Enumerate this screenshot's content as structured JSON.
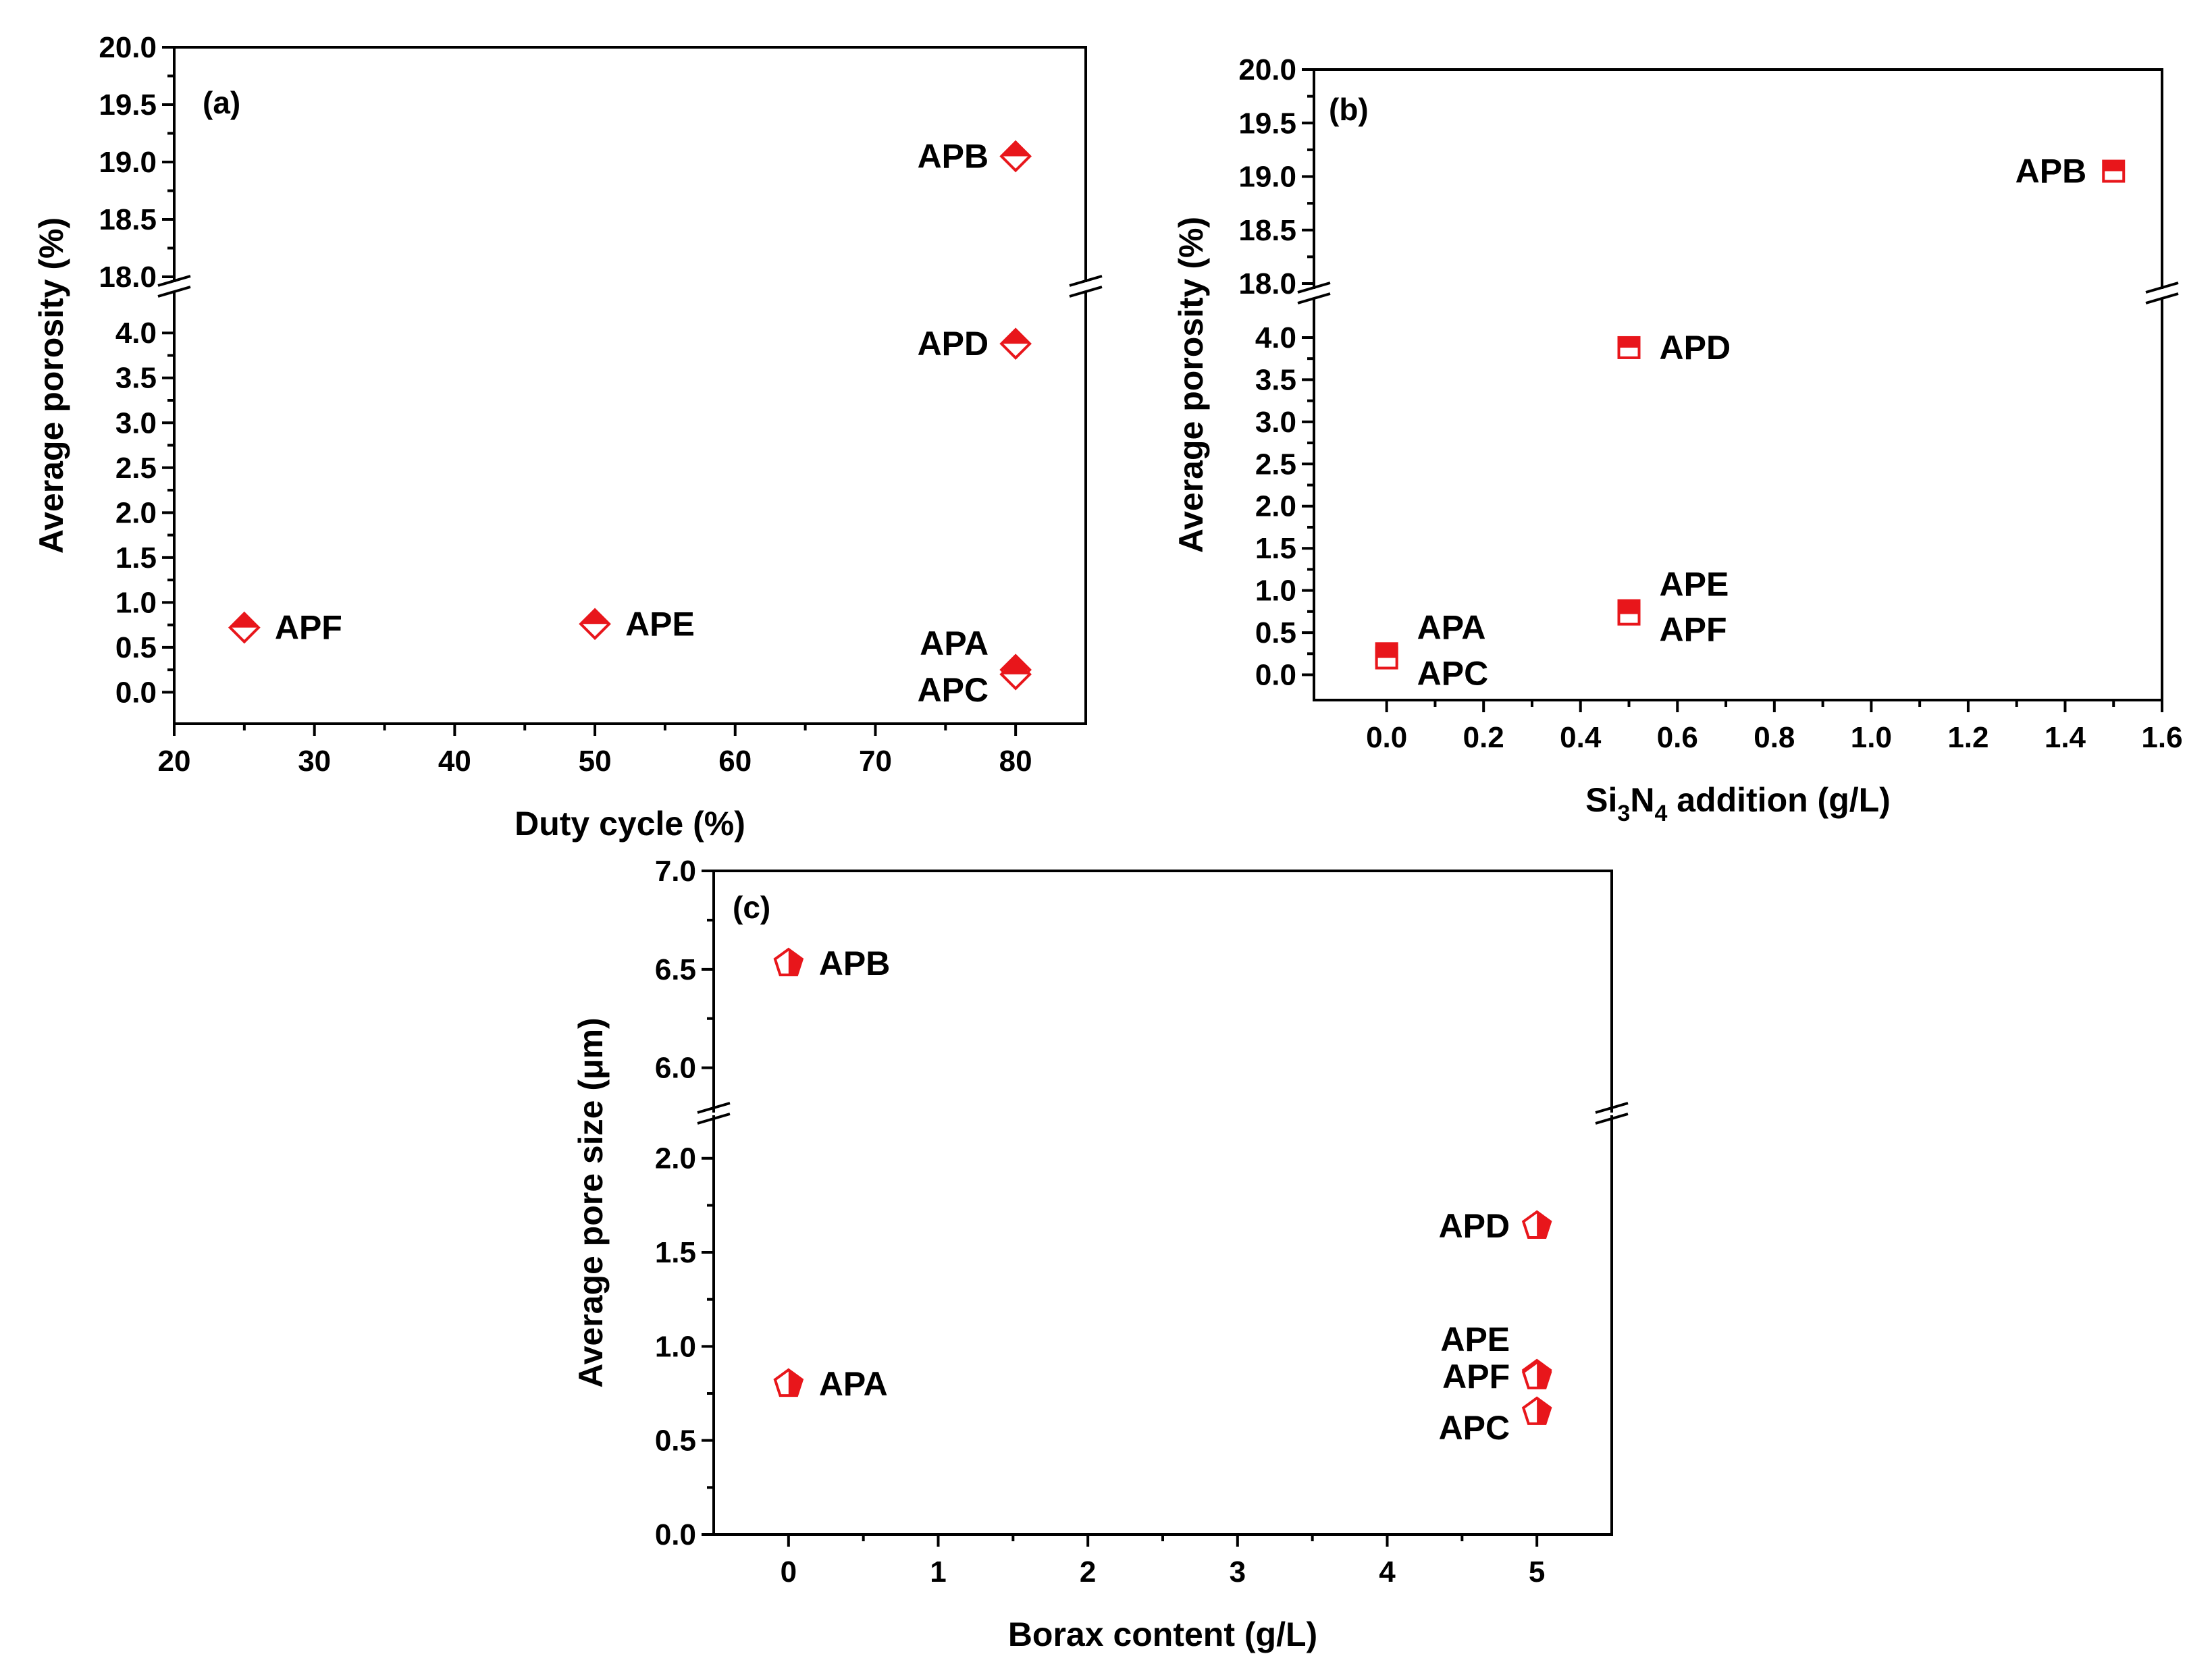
{
  "figure": {
    "panels": [
      "(a)",
      "(b)",
      "(c)"
    ]
  },
  "chart_data": [
    {
      "id": "a",
      "type": "scatter",
      "panel_label": "(a)",
      "xlabel": "Duty cycle (%)",
      "ylabel": "Average porosity (%)",
      "xlim": [
        20,
        85
      ],
      "xticks": [
        20,
        30,
        40,
        50,
        60,
        70,
        80
      ],
      "y_break": {
        "lower": [
          -0.35,
          4.4
        ],
        "upper": [
          18.0,
          20.0
        ]
      },
      "yticks_lower": [
        0.0,
        0.5,
        1.0,
        1.5,
        2.0,
        2.5,
        3.0,
        3.5,
        4.0
      ],
      "yticks_upper": [
        18.0,
        18.5,
        19.0,
        19.5,
        20.0
      ],
      "marker": "diamond-half",
      "color": "#e8161b",
      "points": [
        {
          "label": "APF",
          "x": 25,
          "y": 0.72,
          "label_pos": "right"
        },
        {
          "label": "APE",
          "x": 50,
          "y": 0.76,
          "label_pos": "right"
        },
        {
          "label": "APA",
          "x": 80,
          "y": 0.25,
          "label_pos": "left-up"
        },
        {
          "label": "APC",
          "x": 80,
          "y": 0.2,
          "label_pos": "left-down"
        },
        {
          "label": "APD",
          "x": 80,
          "y": 3.88,
          "label_pos": "left"
        },
        {
          "label": "APB",
          "x": 80,
          "y": 19.05,
          "label_pos": "left"
        }
      ]
    },
    {
      "id": "b",
      "type": "scatter",
      "panel_label": "(b)",
      "xlabel_parts": [
        "Si",
        "3",
        "N",
        "4",
        " addition (g/L)"
      ],
      "ylabel": "Average porosity (%)",
      "xlim": [
        -0.15,
        1.6
      ],
      "xticks": [
        0.0,
        0.2,
        0.4,
        0.6,
        0.8,
        1.0,
        1.2,
        1.4,
        1.6
      ],
      "y_break": {
        "lower": [
          -0.3,
          4.4
        ],
        "upper": [
          18.0,
          20.0
        ]
      },
      "yticks_lower": [
        0.0,
        0.5,
        1.0,
        1.5,
        2.0,
        2.5,
        3.0,
        3.5,
        4.0
      ],
      "yticks_upper": [
        18.0,
        18.5,
        19.0,
        19.5,
        20.0
      ],
      "marker": "square-half",
      "color": "#e8161b",
      "points": [
        {
          "label": "APA",
          "x": 0.0,
          "y": 0.25,
          "label_pos": "right-up"
        },
        {
          "label": "APC",
          "x": 0.0,
          "y": 0.2,
          "label_pos": "right-down"
        },
        {
          "label": "APE",
          "x": 0.5,
          "y": 0.76,
          "label_pos": "right-up"
        },
        {
          "label": "APF",
          "x": 0.5,
          "y": 0.72,
          "label_pos": "right-down"
        },
        {
          "label": "APD",
          "x": 0.5,
          "y": 3.88,
          "label_pos": "right"
        },
        {
          "label": "APB",
          "x": 1.5,
          "y": 19.05,
          "label_pos": "left"
        }
      ]
    },
    {
      "id": "c",
      "type": "scatter",
      "panel_label": "(c)",
      "xlabel": "Borax content (g/L)",
      "ylabel": "Average pore size (μm)",
      "xlim": [
        -0.5,
        5.5
      ],
      "xticks": [
        0,
        1,
        2,
        3,
        4,
        5
      ],
      "y_break": {
        "lower": [
          0.0,
          2.2
        ],
        "upper": [
          5.8,
          7.0
        ]
      },
      "yticks_lower": [
        0.0,
        0.5,
        1.0,
        1.5,
        2.0
      ],
      "yticks_upper": [
        6.0,
        6.5,
        7.0
      ],
      "marker": "pentagon-half",
      "color": "#e8161b",
      "points": [
        {
          "label": "APB",
          "x": 0,
          "y": 6.53,
          "label_pos": "right"
        },
        {
          "label": "APA",
          "x": 0,
          "y": 0.8,
          "label_pos": "right"
        },
        {
          "label": "APD",
          "x": 5,
          "y": 1.64,
          "label_pos": "left"
        },
        {
          "label": "APE",
          "x": 5,
          "y": 0.85,
          "label_pos": "left-up"
        },
        {
          "label": "APF",
          "x": 5,
          "y": 0.84,
          "label_pos": "left-down"
        },
        {
          "label": "APC",
          "x": 5,
          "y": 0.65,
          "label_pos": "left-down"
        }
      ]
    }
  ]
}
